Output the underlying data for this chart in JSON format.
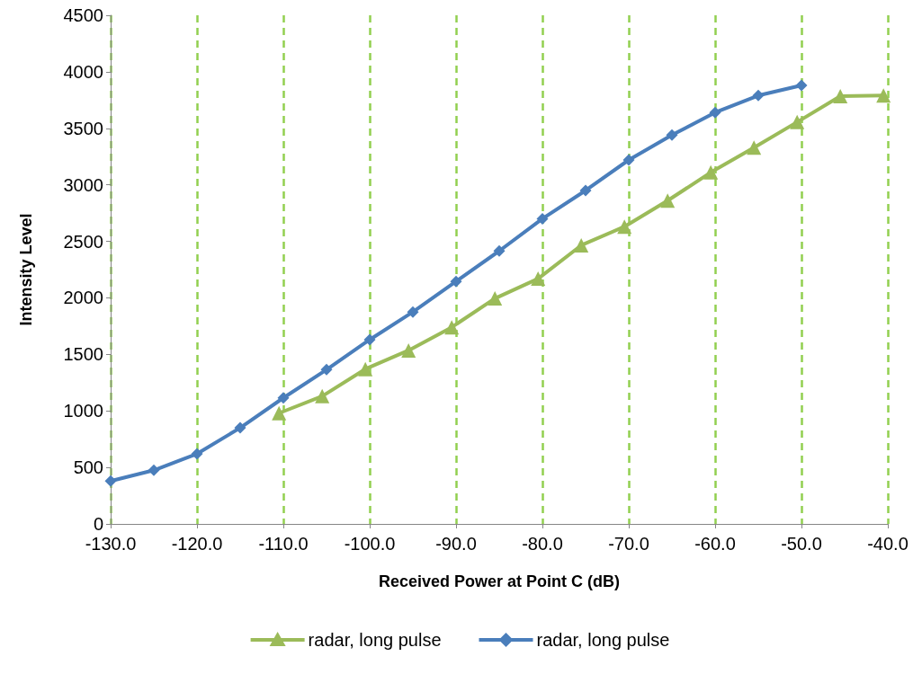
{
  "chart_data": {
    "type": "line",
    "xlabel": "Received Power at Point C (dB)",
    "ylabel": "Intensity Level",
    "xlim": [
      -130,
      -40
    ],
    "xticks": [
      {
        "value": -130,
        "label": "-130.0"
      },
      {
        "value": -120,
        "label": "-120.0"
      },
      {
        "value": -110,
        "label": "-110.0"
      },
      {
        "value": -100,
        "label": "-100.0"
      },
      {
        "value": -90,
        "label": "-90.0"
      },
      {
        "value": -80,
        "label": "-80.0"
      },
      {
        "value": -70,
        "label": "-70.0"
      },
      {
        "value": -60,
        "label": "-60.0"
      },
      {
        "value": -50,
        "label": "-50.0"
      },
      {
        "value": -40,
        "label": "-40.0"
      }
    ],
    "ylim": [
      0,
      4500
    ],
    "yticks": [
      0,
      500,
      1000,
      1500,
      2000,
      2500,
      3000,
      3500,
      4000,
      4500
    ],
    "grid": "x",
    "legend": "bottom",
    "line_style": "solid",
    "series": [
      {
        "name": "radar, long pulse",
        "color": "#9bbb59",
        "marker": "triangle",
        "x": [
          -110.5,
          -105.5,
          -100.5,
          -95.5,
          -90.5,
          -85.5,
          -80.5,
          -75.5,
          -70.5,
          -65.5,
          -60.5,
          -55.5,
          -50.5,
          -45.5,
          -40.5
        ],
        "values": [
          980,
          1130,
          1370,
          1535,
          1740,
          1995,
          2170,
          2465,
          2630,
          2860,
          3110,
          3330,
          3555,
          3785,
          3790
        ]
      },
      {
        "name": "radar, long pulse",
        "color": "#4a7ebb",
        "marker": "diamond",
        "x": [
          -130,
          -125,
          -120,
          -115,
          -110,
          -105,
          -100,
          -95,
          -90,
          -85,
          -80,
          -75,
          -70,
          -65,
          -60,
          -55,
          -50
        ],
        "values": [
          380,
          475,
          620,
          850,
          1115,
          1365,
          1630,
          1875,
          2145,
          2415,
          2700,
          2950,
          3220,
          3440,
          3640,
          3790,
          3880
        ]
      }
    ]
  }
}
